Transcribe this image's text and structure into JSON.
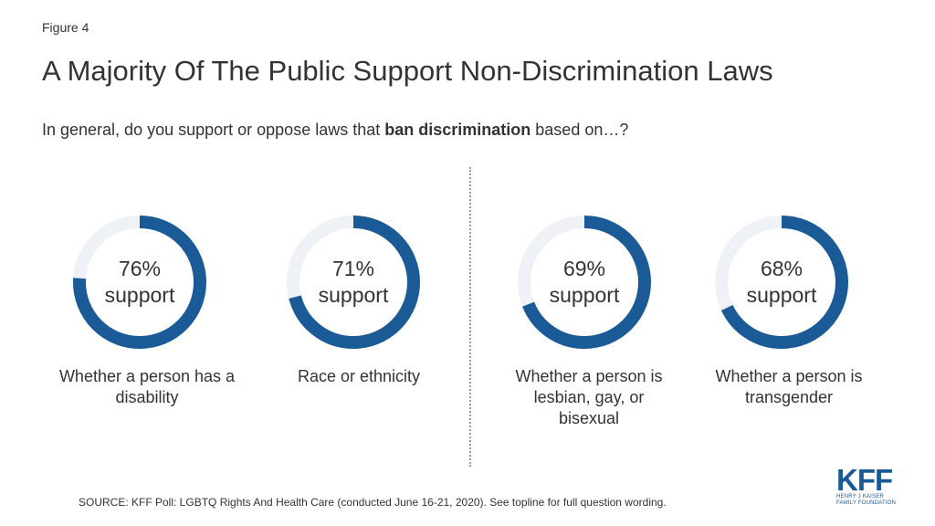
{
  "figure_label": "Figure 4",
  "title": "A Majority Of The Public Support Non-Discrimination Laws",
  "question": {
    "prefix": "In general, do you support or oppose laws that ",
    "bold": "ban discrimination",
    "suffix": " based on…?"
  },
  "colors": {
    "accent": "#1a5a96",
    "track": "#eef2f7"
  },
  "chart_data": {
    "type": "donut",
    "series": [
      {
        "value": 76,
        "pct_label": "76%",
        "word": "support",
        "category": "Whether a person has a disability"
      },
      {
        "value": 71,
        "pct_label": "71%",
        "word": "support",
        "category": "Race or ethnicity"
      },
      {
        "value": 69,
        "pct_label": "69%",
        "word": "support",
        "category": "Whether a person is lesbian, gay, or bisexual"
      },
      {
        "value": 68,
        "pct_label": "68%",
        "word": "support",
        "category": "Whether a person is transgender"
      }
    ]
  },
  "source": "SOURCE: KFF Poll: LGBTQ Rights And Health Care (conducted June 16-21, 2020). See topline for full question wording.",
  "logo": {
    "name": "KFF",
    "line1": "HENRY J KAISER",
    "line2": "FAMILY FOUNDATION"
  }
}
